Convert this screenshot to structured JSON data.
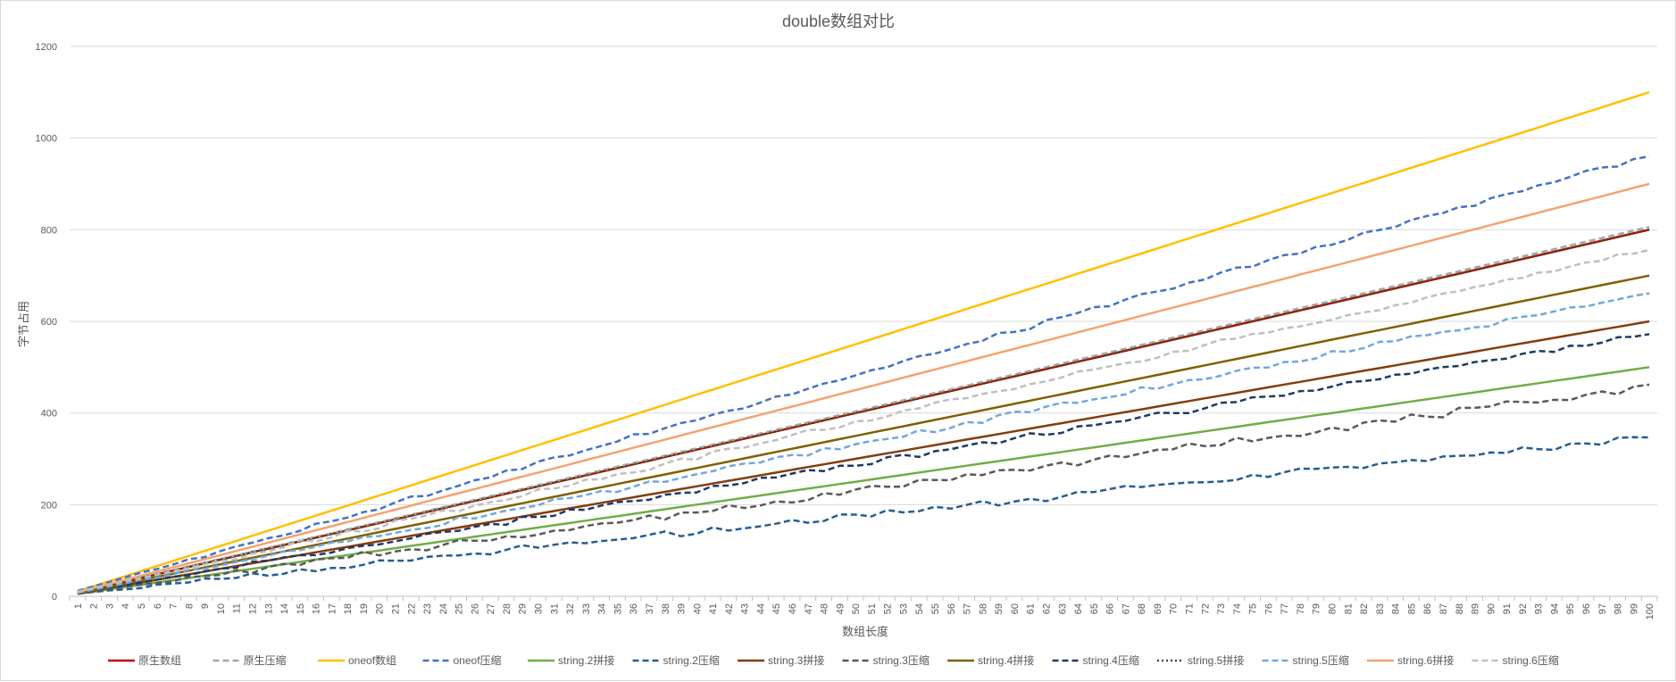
{
  "chart_data": {
    "type": "line",
    "title": "double数组对比",
    "xlabel": "数组长度",
    "ylabel": "字节占用",
    "x_range": [
      1,
      100
    ],
    "ylim": [
      0,
      1200
    ],
    "yticks": [
      0,
      200,
      400,
      600,
      800,
      1000,
      1200
    ],
    "grid": true,
    "legend_position": "bottom",
    "series": [
      {
        "name": "原生数组",
        "color": "#c00000",
        "dash": "solid",
        "start": 8,
        "slope": 8.0,
        "noise": 0,
        "width": 2.5
      },
      {
        "name": "原生压缩",
        "color": "#a5a5a5",
        "dash": "dash",
        "start": 9,
        "slope": 8.05,
        "noise": 0,
        "width": 2.5
      },
      {
        "name": "oneof数组",
        "color": "#ffc000",
        "dash": "solid",
        "start": 11,
        "slope": 11.0,
        "noise": 0,
        "width": 2.5
      },
      {
        "name": "oneof压缩",
        "color": "#4472c4",
        "dash": "dash",
        "start": 12,
        "slope": 9.6,
        "noise": 6,
        "width": 2.5
      },
      {
        "name": "string.2拼接",
        "color": "#70ad47",
        "dash": "solid",
        "start": 5,
        "slope": 5.0,
        "noise": 0,
        "width": 2.5
      },
      {
        "name": "string.2压缩",
        "color": "#255e91",
        "dash": "dash",
        "start": 6,
        "slope": 3.45,
        "noise": 9,
        "width": 2.5
      },
      {
        "name": "string.3拼接",
        "color": "#843c0c",
        "dash": "solid",
        "start": 6,
        "slope": 6.0,
        "noise": 0,
        "width": 2.5
      },
      {
        "name": "string.3压缩",
        "color": "#595959",
        "dash": "dash",
        "start": 7,
        "slope": 4.55,
        "noise": 9,
        "width": 2.5
      },
      {
        "name": "string.4拼接",
        "color": "#7f6000",
        "dash": "solid",
        "start": 7,
        "slope": 7.0,
        "noise": 0,
        "width": 2.5
      },
      {
        "name": "string.4压缩",
        "color": "#203864",
        "dash": "dash",
        "start": 8,
        "slope": 5.7,
        "noise": 7,
        "width": 2.5
      },
      {
        "name": "string.5拼接",
        "color": "#375623",
        "dash": "dot",
        "start": 8,
        "slope": 8.0,
        "noise": 0,
        "width": 2.5
      },
      {
        "name": "string.5压缩",
        "color": "#6fa8dc",
        "dash": "dash",
        "start": 8,
        "slope": 6.6,
        "noise": 7,
        "width": 2.5
      },
      {
        "name": "string.6拼接",
        "color": "#f4a270",
        "dash": "solid",
        "start": 9,
        "slope": 9.0,
        "noise": 0,
        "width": 2.5
      },
      {
        "name": "string.6压缩",
        "color": "#bfbfbf",
        "dash": "dash",
        "start": 10,
        "slope": 7.55,
        "noise": 7,
        "width": 2.5
      }
    ]
  }
}
